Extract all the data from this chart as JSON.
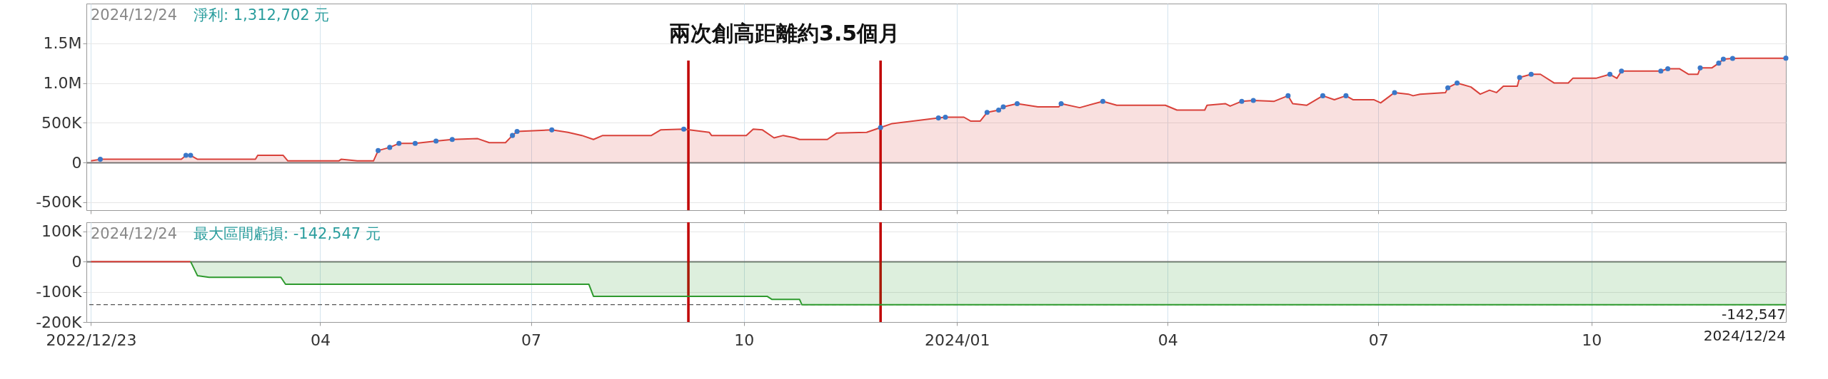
{
  "chart_data": [
    {
      "type": "area",
      "annotations": [
        "2024/12/24",
        "淨利: 1,312,702 元",
        "兩次創高距離約3.5個月"
      ],
      "xlim": [
        "2022-12-21",
        "2024-12-24"
      ],
      "xticks": [
        {
          "value": "2022-12-23",
          "label": null
        },
        {
          "value": "2023-04-01",
          "label": null
        },
        {
          "value": "2023-07-01",
          "label": null
        },
        {
          "value": "2023-10-01",
          "label": null
        },
        {
          "value": "2024-01-01",
          "label": null
        },
        {
          "value": "2024-04-01",
          "label": null
        },
        {
          "value": "2024-07-01",
          "label": null
        },
        {
          "value": "2024-10-01",
          "label": null
        }
      ],
      "ylim": [
        -600000,
        2000000
      ],
      "yticks": [
        {
          "value": -500000,
          "label": "-500K"
        },
        0,
        {
          "value": 500000,
          "label": "500K"
        },
        {
          "value": 1000000,
          "label": "1.0M"
        },
        {
          "value": 1500000,
          "label": "1.5M"
        }
      ],
      "grid": true,
      "tick_labels": "y",
      "ref_lines": [
        {
          "axis": "x",
          "value": "2023-09-07",
          "color": "#c00000"
        },
        {
          "axis": "x",
          "value": "2023-11-29",
          "color": "#c00000"
        }
      ],
      "series": [
        {
          "color": "#d9413a",
          "x": [
            "2022-12-23",
            "2022-12-27",
            "2023-01-31",
            "2023-02-02",
            "2023-02-04",
            "2023-02-07",
            "2023-03-04",
            "2023-03-05",
            "2023-03-16",
            "2023-03-18",
            "2023-04-09",
            "2023-04-10",
            "2023-04-17",
            "2023-04-24",
            "2023-04-26",
            "2023-05-01",
            "2023-05-05",
            "2023-05-12",
            "2023-05-21",
            "2023-05-28",
            "2023-06-08",
            "2023-06-13",
            "2023-06-20",
            "2023-06-23",
            "2023-06-25",
            "2023-07-10",
            "2023-07-17",
            "2023-07-23",
            "2023-07-28",
            "2023-08-01",
            "2023-08-22",
            "2023-08-26",
            "2023-09-05",
            "2023-09-16",
            "2023-09-17",
            "2023-10-02",
            "2023-10-05",
            "2023-10-09",
            "2023-10-14",
            "2023-10-18",
            "2023-10-23",
            "2023-10-25",
            "2023-11-06",
            "2023-11-10",
            "2023-11-23",
            "2023-11-29",
            "2023-12-04",
            "2023-12-24",
            "2023-12-27",
            "2024-01-04",
            "2024-01-07",
            "2024-01-11",
            "2024-01-14",
            "2024-01-19",
            "2024-01-21",
            "2024-01-27",
            "2024-02-05",
            "2024-02-14",
            "2024-02-15",
            "2024-02-23",
            "2024-03-04",
            "2024-03-10",
            "2024-03-31",
            "2024-04-05",
            "2024-04-17",
            "2024-04-18",
            "2024-04-26",
            "2024-04-28",
            "2024-05-03",
            "2024-05-08",
            "2024-05-17",
            "2024-05-23",
            "2024-05-25",
            "2024-05-31",
            "2024-06-07",
            "2024-06-12",
            "2024-06-17",
            "2024-06-20",
            "2024-06-29",
            "2024-07-02",
            "2024-07-08",
            "2024-07-14",
            "2024-07-16",
            "2024-07-19",
            "2024-07-30",
            "2024-07-31",
            "2024-08-04",
            "2024-08-10",
            "2024-08-14",
            "2024-08-18",
            "2024-08-21",
            "2024-08-24",
            "2024-08-30",
            "2024-08-31",
            "2024-09-05",
            "2024-09-09",
            "2024-09-15",
            "2024-09-21",
            "2024-09-23",
            "2024-10-03",
            "2024-10-09",
            "2024-10-12",
            "2024-10-14",
            "2024-10-18",
            "2024-10-31",
            "2024-11-03",
            "2024-11-08",
            "2024-11-12",
            "2024-11-16",
            "2024-11-17",
            "2024-11-22",
            "2024-11-25",
            "2024-11-27",
            "2024-12-01",
            "2024-12-05",
            "2024-12-24"
          ],
          "values": [
            20000,
            40000,
            40000,
            90000,
            90000,
            40000,
            40000,
            90000,
            90000,
            20000,
            20000,
            40000,
            20000,
            20000,
            150000,
            190000,
            240000,
            240000,
            270000,
            290000,
            300000,
            250000,
            250000,
            340000,
            390000,
            410000,
            380000,
            340000,
            290000,
            340000,
            340000,
            410000,
            420000,
            380000,
            340000,
            340000,
            420000,
            410000,
            310000,
            340000,
            310000,
            290000,
            290000,
            370000,
            380000,
            440000,
            490000,
            560000,
            570000,
            570000,
            520000,
            520000,
            630000,
            660000,
            700000,
            740000,
            700000,
            700000,
            740000,
            690000,
            770000,
            720000,
            720000,
            660000,
            660000,
            720000,
            740000,
            710000,
            770000,
            780000,
            770000,
            840000,
            740000,
            720000,
            840000,
            790000,
            840000,
            790000,
            790000,
            750000,
            880000,
            860000,
            840000,
            860000,
            880000,
            940000,
            1000000,
            950000,
            860000,
            910000,
            880000,
            960000,
            960000,
            1070000,
            1110000,
            1110000,
            1000000,
            1000000,
            1060000,
            1060000,
            1110000,
            1060000,
            1150000,
            1150000,
            1150000,
            1180000,
            1180000,
            1110000,
            1110000,
            1190000,
            1190000,
            1250000,
            1300000,
            1310000,
            1312702,
            1312702
          ]
        },
        {
          "type": "scatter",
          "color": "#3a78c9",
          "x": [
            "2022-12-27",
            "2023-02-02",
            "2023-02-04",
            "2023-04-26",
            "2023-05-01",
            "2023-05-05",
            "2023-05-12",
            "2023-05-21",
            "2023-05-28",
            "2023-06-23",
            "2023-06-25",
            "2023-07-10",
            "2023-09-05",
            "2023-11-29",
            "2023-12-24",
            "2023-12-27",
            "2024-01-14",
            "2024-01-19",
            "2024-01-21",
            "2024-01-27",
            "2024-02-15",
            "2024-03-04",
            "2024-05-03",
            "2024-05-08",
            "2024-05-23",
            "2024-06-07",
            "2024-06-17",
            "2024-07-08",
            "2024-07-31",
            "2024-08-04",
            "2024-08-31",
            "2024-09-05",
            "2024-10-09",
            "2024-10-14",
            "2024-10-31",
            "2024-11-03",
            "2024-11-17",
            "2024-11-25",
            "2024-11-27",
            "2024-12-01",
            "2024-12-24"
          ],
          "values": [
            40000,
            90000,
            90000,
            150000,
            190000,
            240000,
            240000,
            270000,
            290000,
            340000,
            390000,
            410000,
            420000,
            440000,
            560000,
            570000,
            630000,
            660000,
            700000,
            740000,
            740000,
            770000,
            770000,
            780000,
            840000,
            840000,
            840000,
            880000,
            940000,
            1000000,
            1070000,
            1110000,
            1110000,
            1150000,
            1150000,
            1180000,
            1190000,
            1250000,
            1300000,
            1310000,
            1312702
          ]
        }
      ]
    },
    {
      "type": "area",
      "annotations": [
        "2024/12/24",
        "最大區間虧損: -142,547 元",
        "2024/12/24"
      ],
      "xlim": [
        "2022-12-21",
        "2024-12-24"
      ],
      "xticks": [
        {
          "value": "2022-12-23",
          "label": "2022/12/23"
        },
        {
          "value": "2023-04-01",
          "label": "04"
        },
        {
          "value": "2023-07-01",
          "label": "07"
        },
        {
          "value": "2023-10-01",
          "label": "10"
        },
        {
          "value": "2024-01-01",
          "label": "2024/01"
        },
        {
          "value": "2024-04-01",
          "label": "04"
        },
        {
          "value": "2024-07-01",
          "label": "07"
        },
        {
          "value": "2024-10-01",
          "label": "10"
        }
      ],
      "ylim": [
        -200000,
        130000
      ],
      "yticks": [
        {
          "value": -200000,
          "label": "-200K"
        },
        {
          "value": -100000,
          "label": "-100K"
        },
        0,
        {
          "value": 100000,
          "label": "100K"
        }
      ],
      "grid": true,
      "ref_lines": [
        {
          "axis": "x",
          "value": "2023-09-07",
          "color": "#c00000"
        },
        {
          "axis": "x",
          "value": "2023-11-29",
          "color": "#c00000"
        },
        {
          "axis": "y",
          "value": -142547,
          "label": "-142,547",
          "color": "#555555",
          "line_style": "dashed"
        }
      ],
      "series": [
        {
          "type": "line",
          "color": "#d9413a",
          "x": [
            "2022-12-23",
            "2023-02-04"
          ],
          "values": [
            0,
            0
          ]
        },
        {
          "color": "#2e9a2e",
          "x": [
            "2023-02-04",
            "2023-02-07",
            "2023-02-12",
            "2023-03-15",
            "2023-03-17",
            "2023-07-26",
            "2023-07-28",
            "2023-10-11",
            "2023-10-13",
            "2023-10-25",
            "2023-10-26",
            "2024-12-24"
          ],
          "values": [
            0,
            -47000,
            -52000,
            -52000,
            -75000,
            -75000,
            -115000,
            -115000,
            -125000,
            -125000,
            -142547,
            -142547
          ]
        }
      ]
    }
  ]
}
